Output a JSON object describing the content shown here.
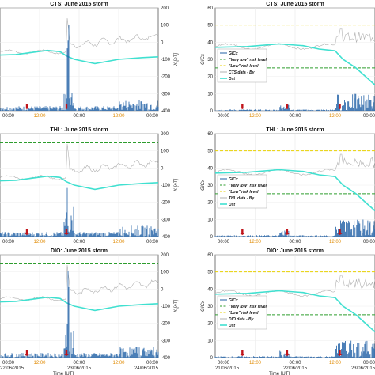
{
  "colors": {
    "gic": "#1f5fa5",
    "dst": "#40e0d0",
    "by": "#b0b0b0",
    "very_low": "#2e9d2e",
    "low": "#e8d000",
    "arrow": "#c0141a",
    "orange_tick": "#e08a00"
  },
  "chart_data": [
    {
      "type": "line",
      "title": "CTS: June 2015 storm",
      "ylabel_right": "X [nT]",
      "yticks_right": [
        "200",
        "100",
        "0",
        "-100",
        "-200",
        "-300",
        "-400"
      ],
      "ylim_right": [
        -400,
        200
      ],
      "xticks": [
        "00:00",
        "12:00",
        "00:00",
        "12:00",
        "00:00"
      ],
      "very_low_risk_level_nT": 147,
      "arrows_x_frac": [
        0.17,
        0.42
      ],
      "series": [
        {
          "values_dst": [
            -75,
            -70,
            -50,
            -45,
            -40,
            -60,
            -80,
            -125,
            -95,
            -90,
            -85,
            -80,
            -75,
            -70
          ]
        },
        {
          "values_by": [
            -60,
            -60,
            -55,
            -50,
            -40,
            -30,
            120,
            -30,
            -20,
            -10,
            10,
            10,
            -20
          ]
        }
      ]
    },
    {
      "type": "line",
      "title": "CTS: June 2015 storm",
      "ylabel_left": "GICx",
      "yticks_left": [
        "60",
        "50",
        "40",
        "30",
        "20",
        "10",
        "0"
      ],
      "ylim_left": [
        0,
        60
      ],
      "xticks": [
        "00:00",
        "12:00",
        "00:00",
        "12:00",
        "00:00"
      ],
      "very_low_risk_level": 25,
      "low_risk_level": 50,
      "legend": [
        "GICx",
        "\"Very low\" risk level",
        "\"Low\" risk level",
        "CTS data - By",
        "Dst"
      ],
      "arrows_x_frac": [
        0.17,
        0.45,
        0.78
      ]
    },
    {
      "type": "line",
      "title": "THL: June 2015 storm",
      "ylabel_right": "X [nT]",
      "yticks_right": [
        "200",
        "100",
        "0",
        "-100",
        "-200",
        "-300",
        "-400"
      ],
      "ylim_right": [
        -400,
        200
      ],
      "xticks": [
        "00:00",
        "12:00",
        "00:00",
        "12:00",
        "00:00"
      ],
      "very_low_risk_level_nT": 147,
      "arrows_x_frac": [
        0.17,
        0.42
      ]
    },
    {
      "type": "line",
      "title": "THL: June 2015 storm",
      "ylabel_left": "GICx",
      "yticks_left": [
        "60",
        "50",
        "40",
        "30",
        "20",
        "10",
        "0"
      ],
      "ylim_left": [
        0,
        60
      ],
      "xticks": [
        "00:00",
        "12:00",
        "00:00",
        "12:00",
        "00:00"
      ],
      "very_low_risk_level": 25,
      "low_risk_level": 50,
      "legend": [
        "GICx",
        "\"Very low\" risk level",
        "\"Low\" risk level",
        "THL data - By",
        "Dst"
      ],
      "arrows_x_frac": [
        0.17,
        0.45,
        0.78
      ]
    },
    {
      "type": "line",
      "title": "DIO: June 2015 storm",
      "ylabel_right": "X [nT]",
      "yticks_right": [
        "200",
        "100",
        "0",
        "-100",
        "-200",
        "-300",
        "-400"
      ],
      "ylim_right": [
        -400,
        200
      ],
      "xticks": [
        "22/06/2015",
        "23/06/2015",
        "24/06/2015"
      ],
      "xtime": [
        "00:00",
        "12:00",
        "00:00",
        "12:00",
        "00:00"
      ],
      "xlabel": "Time [UT]",
      "very_low_risk_level_nT": 147,
      "arrows_x_frac": [
        0.17,
        0.42
      ]
    },
    {
      "type": "line",
      "title": "DIO: June 2015 storm",
      "ylabel_left": "GICx",
      "yticks_left": [
        "60",
        "50",
        "40",
        "30",
        "20",
        "10",
        "0"
      ],
      "ylim_left": [
        0,
        60
      ],
      "xticks": [
        "21/06/2015",
        "22/06/2015",
        "23/06/2015"
      ],
      "xtime": [
        "00:00",
        "12:00",
        "00:00",
        "12:00",
        "00:00"
      ],
      "xlabel": "Time [UT]",
      "very_low_risk_level": 25,
      "low_risk_level": 50,
      "legend": [
        "GICx",
        "\"Very low\" risk level",
        "\"Low\" risk level",
        "DIO data - By",
        "Dst"
      ],
      "arrows_x_frac": [
        0.17,
        0.45,
        0.78
      ]
    }
  ]
}
